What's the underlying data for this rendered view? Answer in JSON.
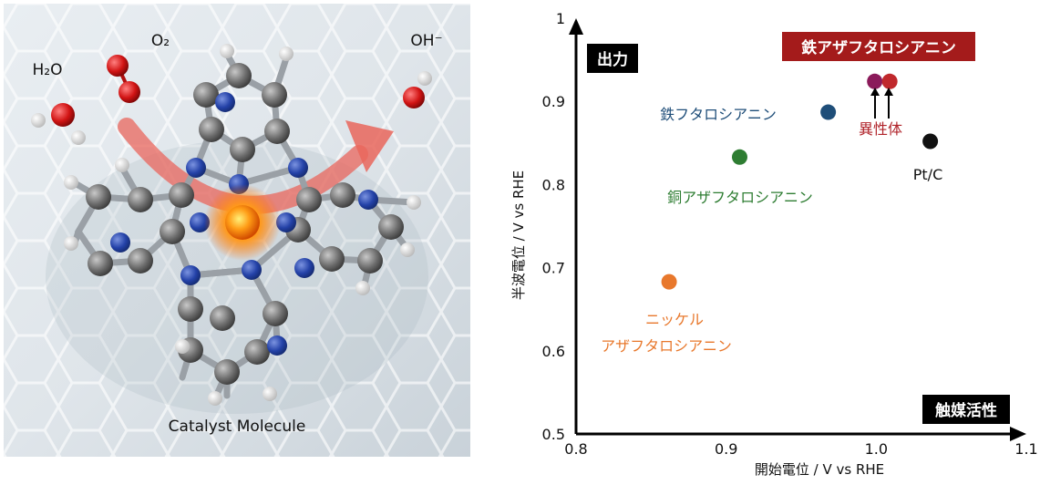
{
  "illustration": {
    "caption": "Catalyst Molecule",
    "labels": {
      "h2o": "H₂O",
      "o2": "O₂",
      "oh": "OH⁻"
    }
  },
  "chart_data": {
    "type": "scatter",
    "xlabel": "開始電位 / V vs RHE",
    "ylabel": "半波電位 / V vs RHE",
    "xlim": [
      0.8,
      1.1
    ],
    "ylim": [
      0.5,
      1.0
    ],
    "xticks": [
      "0.8",
      "0.9",
      "1.0",
      "1.1"
    ],
    "yticks": [
      "0.5",
      "0.6",
      "0.7",
      "0.8",
      "0.9",
      "1"
    ],
    "grid": false,
    "corner_labels": {
      "y_axis": "出力",
      "x_axis": "触媒活性"
    },
    "points": [
      {
        "name": "鉄フタロシアニン",
        "x": 0.968,
        "y": 0.887,
        "color": "#1f4e79"
      },
      {
        "name": "銅アザフタロシアニン",
        "x": 0.909,
        "y": 0.833,
        "color": "#2e7d32"
      },
      {
        "name": "ニッケル アザフタロシアニン",
        "x": 0.862,
        "y": 0.683,
        "color": "#e8782c"
      },
      {
        "name": "Pt/C",
        "x": 1.036,
        "y": 0.852,
        "color": "#111111"
      },
      {
        "name": "鉄アザフタロシアニン 異性体 1",
        "x": 0.999,
        "y": 0.924,
        "color": "#8b1a5a"
      },
      {
        "name": "鉄アザフタロシアニン 異性体 2",
        "x": 1.009,
        "y": 0.924,
        "color": "#c0282c"
      }
    ],
    "labels": {
      "fe_pc": "鉄フタロシアニン",
      "cu_azapc": "銅アザフタロシアニン",
      "ni_azapc_line1": "ニッケル",
      "ni_azapc_line2": "アザフタロシアニン",
      "ptc": "Pt/C",
      "fe_azapc_title": "鉄アザフタロシアニン",
      "isomer": "異性体"
    }
  }
}
